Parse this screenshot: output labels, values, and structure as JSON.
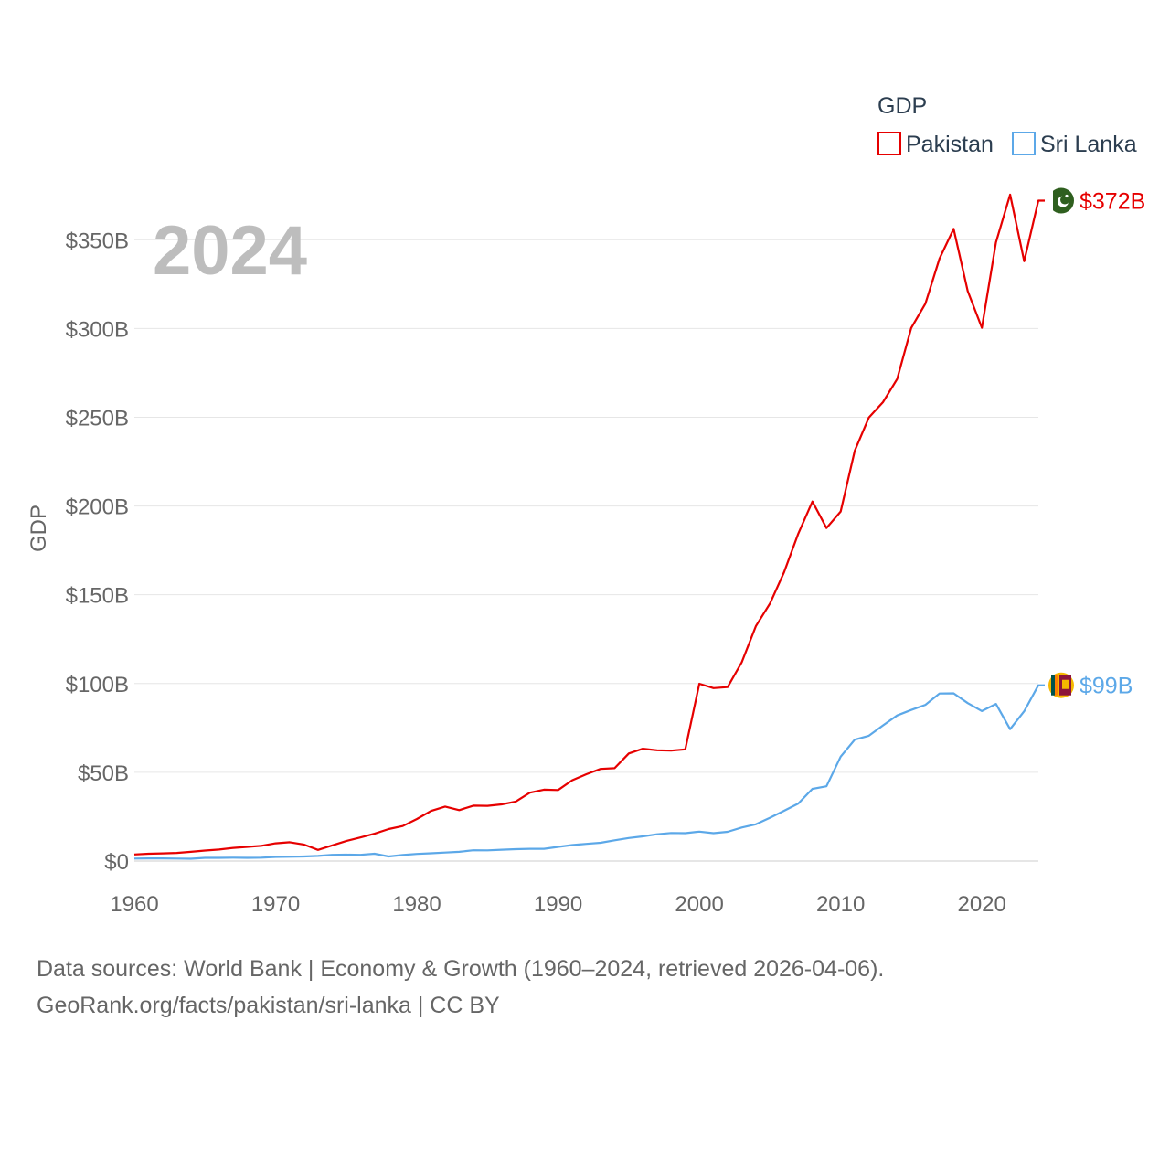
{
  "chart_data": {
    "type": "line",
    "title": "GDP",
    "year_label": "2024",
    "ylabel": "GDP",
    "xlabel": "",
    "xlim": [
      1960,
      2024
    ],
    "ylim": [
      0,
      380
    ],
    "y_ticks": [
      0,
      50,
      100,
      150,
      200,
      250,
      300,
      350
    ],
    "y_tick_labels": [
      "$0",
      "$50B",
      "$100B",
      "$150B",
      "$200B",
      "$250B",
      "$300B",
      "$350B"
    ],
    "x_ticks": [
      1960,
      1970,
      1980,
      1990,
      2000,
      2010,
      2020
    ],
    "x_tick_labels": [
      "1960",
      "1970",
      "1980",
      "1990",
      "2000",
      "2010",
      "2020"
    ],
    "grid": true,
    "legend_position": "top-right",
    "x": [
      1960,
      1961,
      1962,
      1963,
      1964,
      1965,
      1966,
      1967,
      1968,
      1969,
      1970,
      1971,
      1972,
      1973,
      1974,
      1975,
      1976,
      1977,
      1978,
      1979,
      1980,
      1981,
      1982,
      1983,
      1984,
      1985,
      1986,
      1987,
      1988,
      1989,
      1990,
      1991,
      1992,
      1993,
      1994,
      1995,
      1996,
      1997,
      1998,
      1999,
      2000,
      2001,
      2002,
      2003,
      2004,
      2005,
      2006,
      2007,
      2008,
      2009,
      2010,
      2011,
      2012,
      2013,
      2014,
      2015,
      2016,
      2017,
      2018,
      2019,
      2020,
      2021,
      2022,
      2023,
      2024
    ],
    "series": [
      {
        "name": "Pakistan",
        "color": "#e60000",
        "end_label": "$372B",
        "flag_icon": "pakistan-flag-icon",
        "values": [
          3.7,
          4.1,
          4.3,
          4.6,
          5.2,
          5.9,
          6.5,
          7.4,
          8.0,
          8.6,
          10.0,
          10.6,
          9.3,
          6.3,
          8.8,
          11.3,
          13.3,
          15.4,
          18.0,
          19.7,
          23.7,
          28.2,
          30.7,
          28.7,
          31.2,
          31.1,
          31.9,
          33.5,
          38.5,
          40.2,
          40.0,
          45.5,
          48.9,
          51.9,
          52.3,
          60.6,
          63.3,
          62.4,
          62.2,
          62.9,
          99.9,
          97.4,
          98.0,
          112.0,
          132.3,
          145.1,
          162.7,
          184.4,
          202.5,
          187.6,
          196.9,
          231.1,
          249.9,
          258.5,
          271.5,
          300.3,
          314.0,
          339.3,
          356.1,
          321.1,
          300.4,
          348.5,
          375.4,
          337.9,
          372.0
        ]
      },
      {
        "name": "Sri Lanka",
        "color": "#5ca8e8",
        "end_label": "$99B",
        "flag_icon": "sri-lanka-flag-icon",
        "values": [
          1.4,
          1.5,
          1.5,
          1.4,
          1.3,
          1.8,
          1.8,
          1.9,
          1.8,
          1.9,
          2.3,
          2.4,
          2.6,
          2.9,
          3.5,
          3.6,
          3.5,
          4.1,
          2.6,
          3.4,
          4.0,
          4.4,
          4.8,
          5.2,
          6.1,
          6.0,
          6.4,
          6.7,
          6.9,
          6.9,
          8.0,
          9.0,
          9.7,
          10.3,
          11.7,
          13.0,
          13.9,
          15.1,
          15.8,
          15.7,
          16.6,
          15.7,
          16.5,
          18.9,
          20.7,
          24.4,
          28.3,
          32.4,
          40.7,
          42.1,
          58.8,
          68.4,
          70.6,
          76.4,
          82.0,
          85.1,
          88.0,
          94.4,
          94.5,
          89.0,
          84.5,
          88.5,
          74.3,
          84.4,
          99.0
        ]
      }
    ]
  },
  "source": {
    "line1": "Data sources: World Bank | Economy & Growth (1960–2024, retrieved 2026-04-06).",
    "line2": "GeoRank.org/facts/pakistan/sri-lanka | CC BY"
  }
}
